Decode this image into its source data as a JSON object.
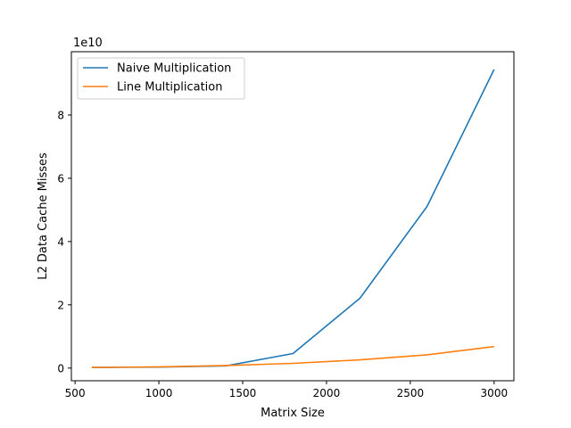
{
  "chart_data": {
    "type": "line",
    "title": "",
    "xlabel": "Matrix Size",
    "ylabel": "L2 Data Cache Misses",
    "y_scale_label": "1e10",
    "xlim": [
      478,
      3118
    ],
    "ylim": [
      -0.4,
      10.0
    ],
    "x_ticks": [
      {
        "value": 500,
        "label": "500"
      },
      {
        "value": 1000,
        "label": "1000"
      },
      {
        "value": 1500,
        "label": "1500"
      },
      {
        "value": 2000,
        "label": "2000"
      },
      {
        "value": 2500,
        "label": "2500"
      },
      {
        "value": 3000,
        "label": "3000"
      }
    ],
    "y_ticks": [
      {
        "value": 0,
        "label": "0"
      },
      {
        "value": 2,
        "label": "2"
      },
      {
        "value": 4,
        "label": "4"
      },
      {
        "value": 6,
        "label": "6"
      },
      {
        "value": 8,
        "label": "8"
      }
    ],
    "grid": false,
    "legend_position": "top-left",
    "x": [
      600,
      1000,
      1400,
      1800,
      2200,
      2600,
      3000
    ],
    "series": [
      {
        "name": "Naive Multiplication",
        "color": "#1f77b4",
        "values": [
          0.02,
          0.03,
          0.07,
          0.46,
          2.21,
          5.11,
          9.44
        ]
      },
      {
        "name": "Line Multiplication",
        "color": "#ff7f0e",
        "values": [
          0.02,
          0.04,
          0.08,
          0.15,
          0.26,
          0.42,
          0.68
        ]
      }
    ]
  }
}
